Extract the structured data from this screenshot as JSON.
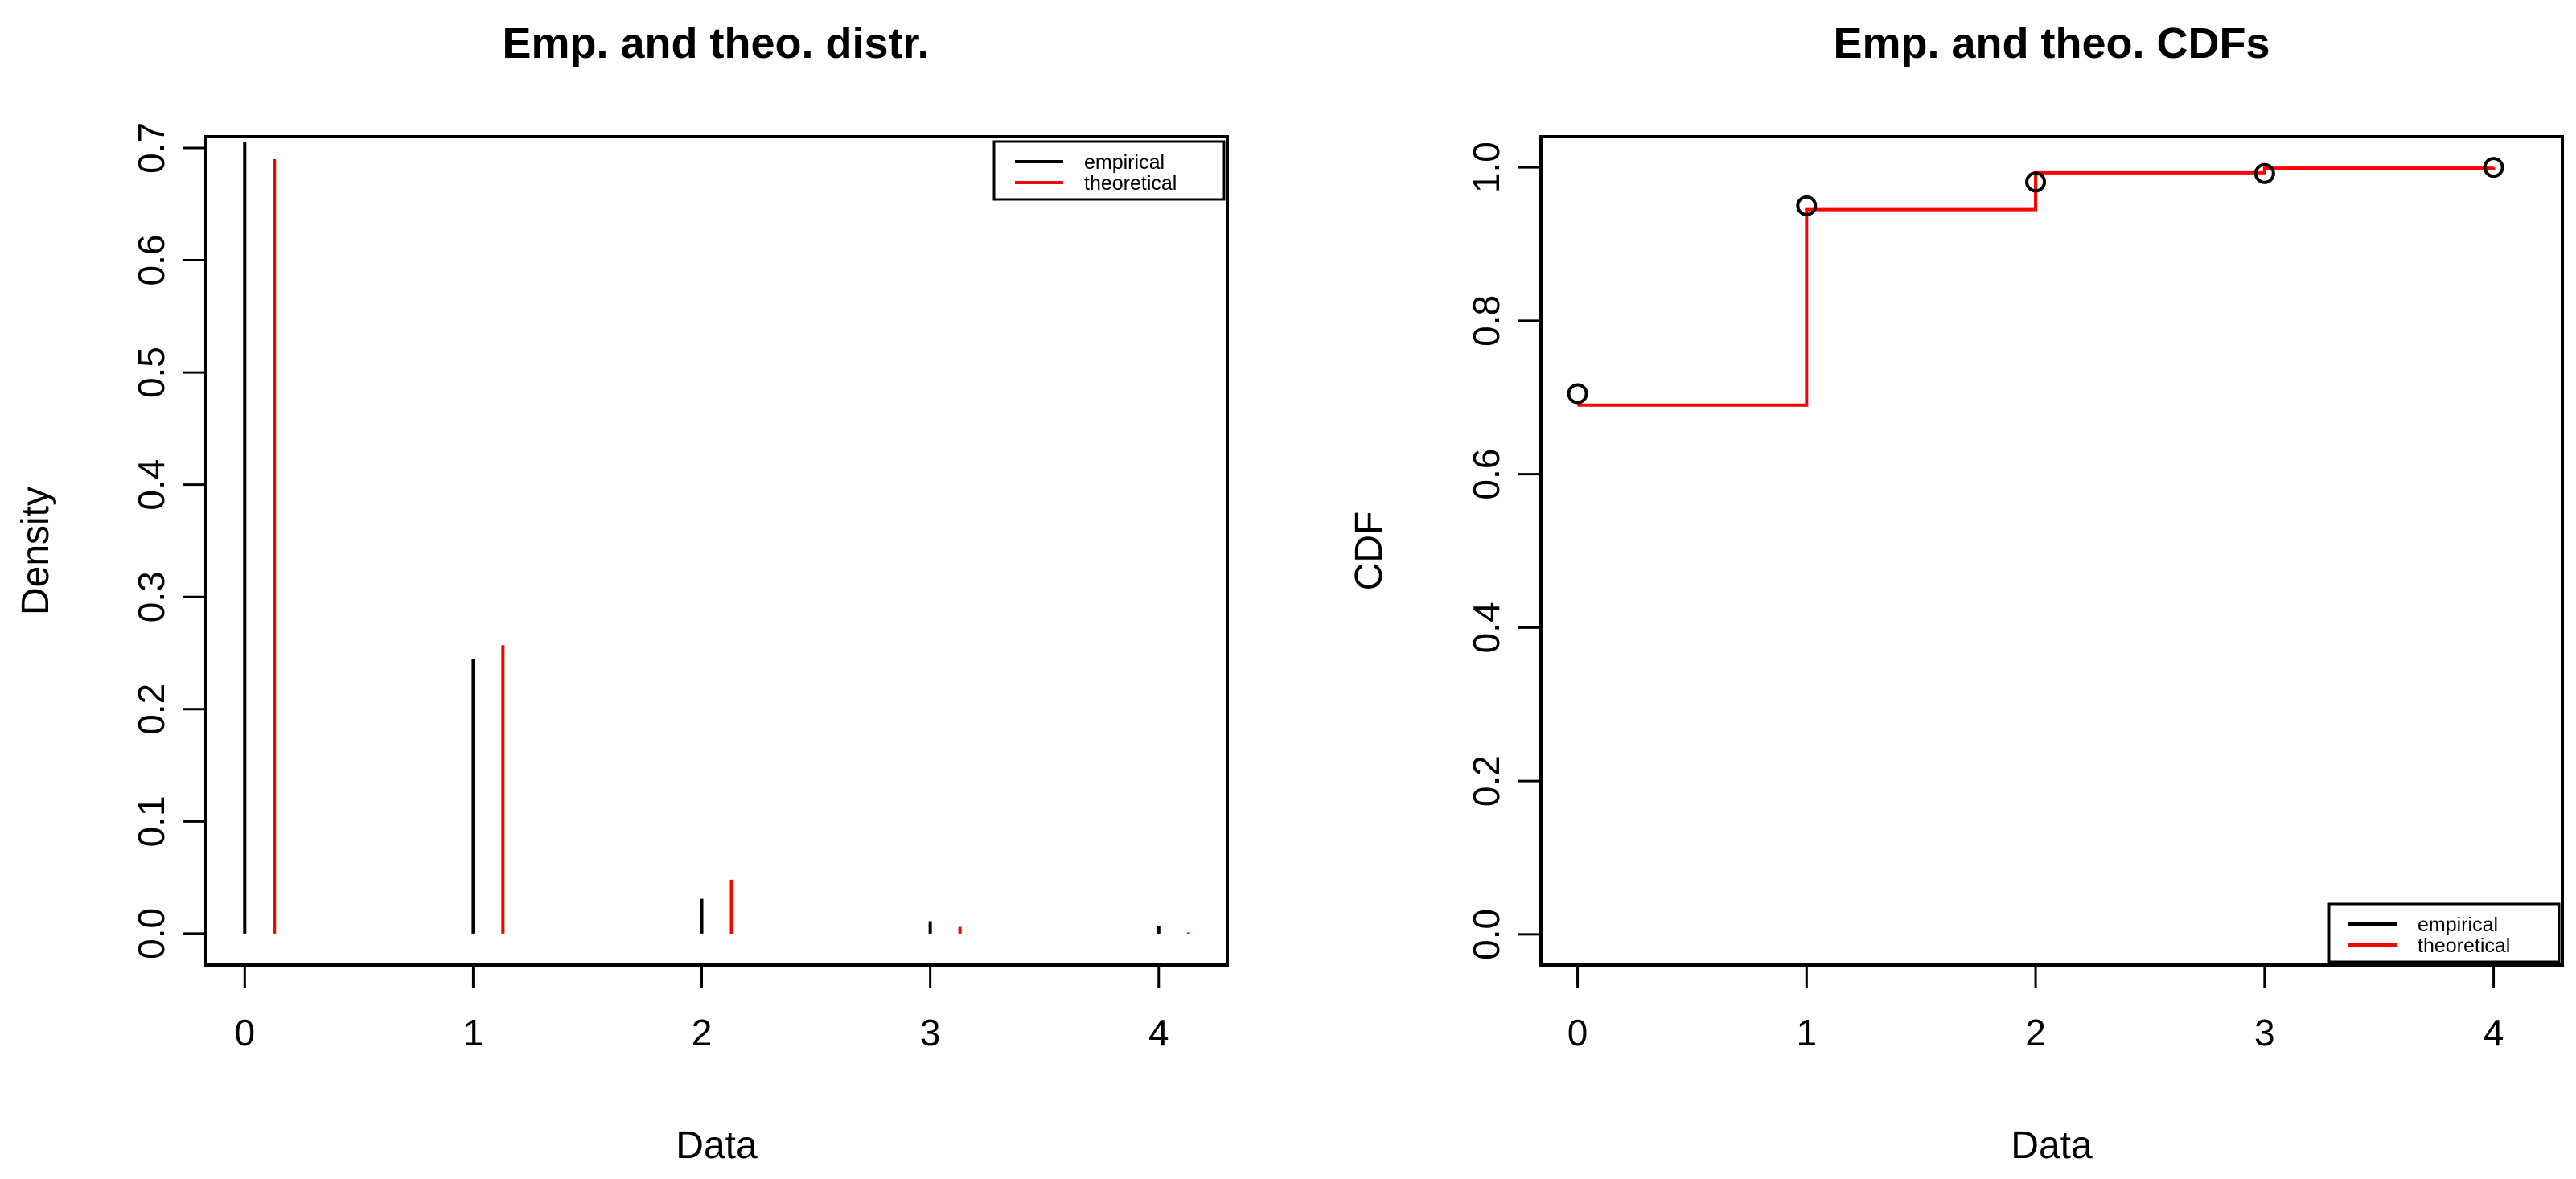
{
  "colors": {
    "empirical": "#000000",
    "theoretical": "#ff0000"
  },
  "chart_data": [
    {
      "type": "bar",
      "title": "Emp. and theo. distr.",
      "xlabel": "Data",
      "ylabel": "Density",
      "xlim": [
        -0.17,
        4.3
      ],
      "ylim": [
        -0.028,
        0.71
      ],
      "x_ticks": [
        "0",
        "1",
        "2",
        "3",
        "4"
      ],
      "y_ticks": [
        "0.0",
        "0.1",
        "0.2",
        "0.3",
        "0.4",
        "0.5",
        "0.6",
        "0.7"
      ],
      "legend": [
        "empirical",
        "theoretical"
      ],
      "legend_position": "top-right",
      "grid": false,
      "categories": [
        0,
        1,
        2,
        3,
        4
      ],
      "series": [
        {
          "name": "empirical",
          "values": [
            0.705,
            0.245,
            0.031,
            0.011,
            0.007
          ]
        },
        {
          "name": "theoretical",
          "values": [
            0.69,
            0.257,
            0.048,
            0.006,
            0.001
          ]
        }
      ]
    },
    {
      "type": "line",
      "title": "Emp. and theo. CDFs",
      "xlabel": "Data",
      "ylabel": "CDF",
      "xlim": [
        -0.16,
        4.3
      ],
      "ylim": [
        -0.04,
        1.04
      ],
      "x_ticks": [
        "0",
        "1",
        "2",
        "3",
        "4"
      ],
      "y_ticks": [
        "0.0",
        "0.2",
        "0.4",
        "0.6",
        "0.8",
        "1.0"
      ],
      "legend": [
        "empirical",
        "theoretical"
      ],
      "legend_position": "bottom-right",
      "grid": false,
      "series": [
        {
          "name": "empirical",
          "x": [
            0,
            1,
            2,
            3,
            4
          ],
          "y": [
            0.705,
            0.95,
            0.981,
            0.992,
            1.0
          ]
        },
        {
          "name": "theoretical",
          "x": [
            0,
            1,
            2,
            3,
            4
          ],
          "y": [
            0.69,
            0.945,
            0.993,
            0.999,
            1.0
          ]
        }
      ]
    }
  ]
}
